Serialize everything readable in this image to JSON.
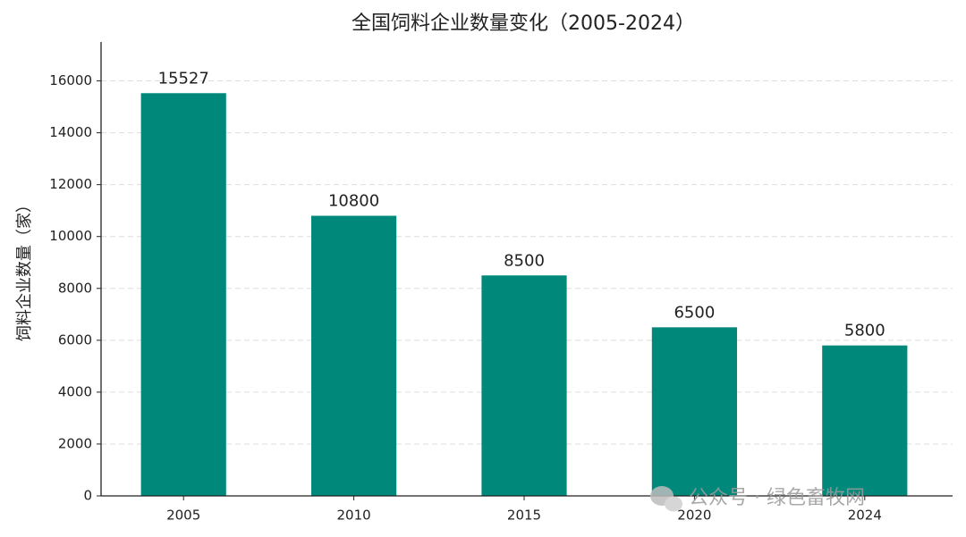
{
  "chart_data": {
    "type": "bar",
    "title": "全国饲料企业数量变化（2005-2024）",
    "y_label": "饲料企业数量（家）",
    "categories": [
      "2005",
      "2010",
      "2015",
      "2020",
      "2024"
    ],
    "values": [
      15527,
      10800,
      8500,
      6500,
      5800
    ],
    "color": "#00897b",
    "ylim": [
      0,
      17500
    ],
    "yticks": [
      0,
      2000,
      4000,
      6000,
      8000,
      10000,
      12000,
      14000,
      16000
    ],
    "grid": true,
    "watermark": "公众号 · 绿色畜牧网"
  }
}
